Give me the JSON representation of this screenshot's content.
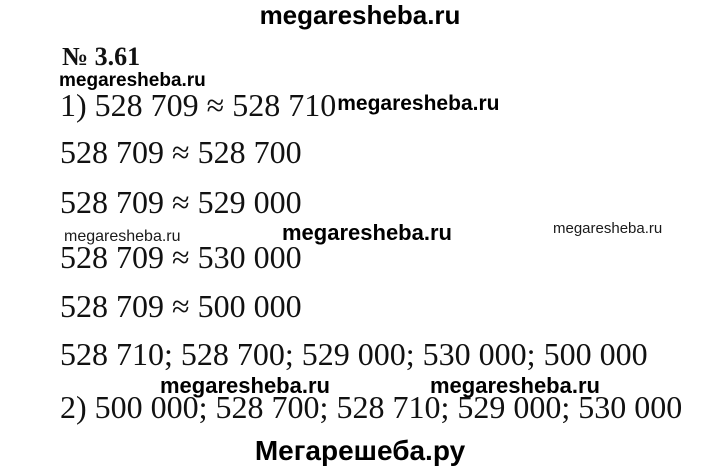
{
  "colors": {
    "background": "#ffffff",
    "text": "#111111",
    "watermark": "#000000"
  },
  "header": {
    "site_watermark": "megaresheba.ru"
  },
  "problem": {
    "number": "№ 3.61"
  },
  "watermark": {
    "latin": "megaresheba.ru",
    "cyrillic": "Мегарешеба.ру"
  },
  "solution": {
    "part1_line1": "1) 528 709 ≈ 528 710",
    "part1_line2": "528 709 ≈ 528 700",
    "part1_line3": "528 709 ≈ 529 000",
    "part1_line4": "528 709 ≈ 530 000",
    "part1_line5": "528 709 ≈ 500 000",
    "part1_line6": "528 710; 528 700; 529 000; 530 000; 500 000",
    "part2_line": "2) 500 000; 528 700; 528 710; 529 000; 530 000"
  },
  "footer": {
    "site_watermark": "Мегарешеба.ру"
  }
}
